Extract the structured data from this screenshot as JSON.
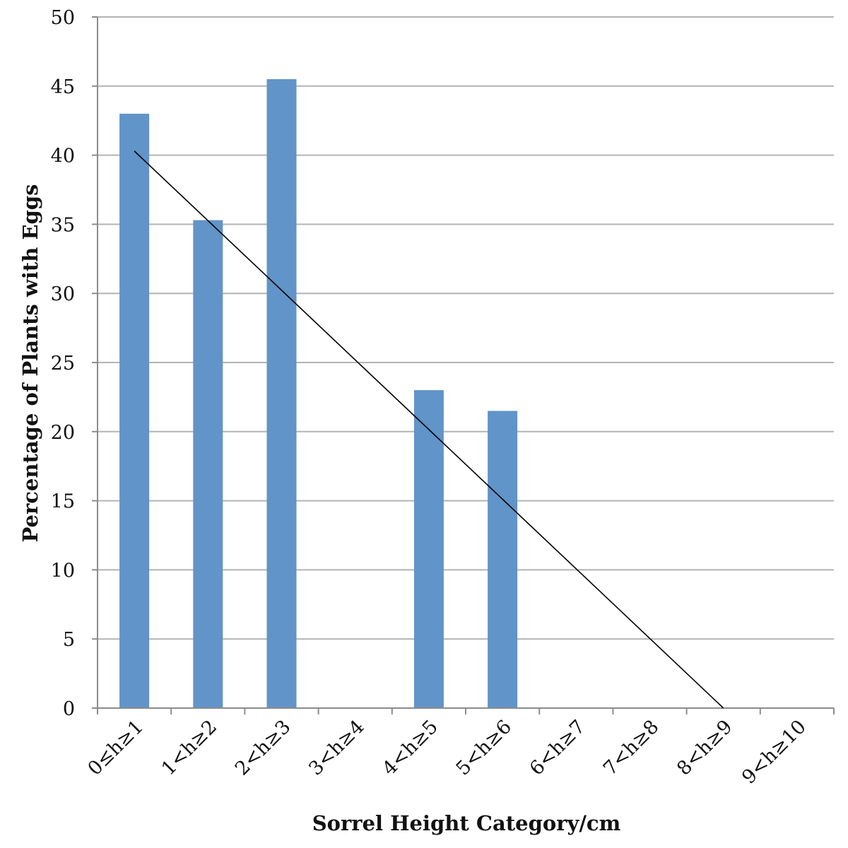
{
  "chart_data": {
    "type": "bar",
    "title": "",
    "xlabel": "Sorrel Height Category/cm",
    "ylabel": "Percentage of Plants with Eggs",
    "categories": [
      "0≤h≥1",
      "1<h≥2",
      "2<h≥3",
      "3<h≥4",
      "4<h≥5",
      "5<h≥6",
      "6<h≥7",
      "7<h≥8",
      "8<h≥9",
      "9<h≥10"
    ],
    "values": [
      43,
      35.3,
      45.5,
      0,
      23,
      21.5,
      0,
      0,
      0,
      0
    ],
    "ylim": [
      0,
      50
    ],
    "yticks": [
      0,
      5,
      10,
      15,
      20,
      25,
      30,
      35,
      40,
      45,
      50
    ],
    "grid": true,
    "legend": "none",
    "bar_color": "#6194C8",
    "trendline": {
      "type": "linear",
      "start": {
        "category": "0≤h≥1",
        "y": 40.3
      },
      "end": {
        "category": "8<h≥9",
        "y": 0
      },
      "color": "#000000"
    }
  }
}
